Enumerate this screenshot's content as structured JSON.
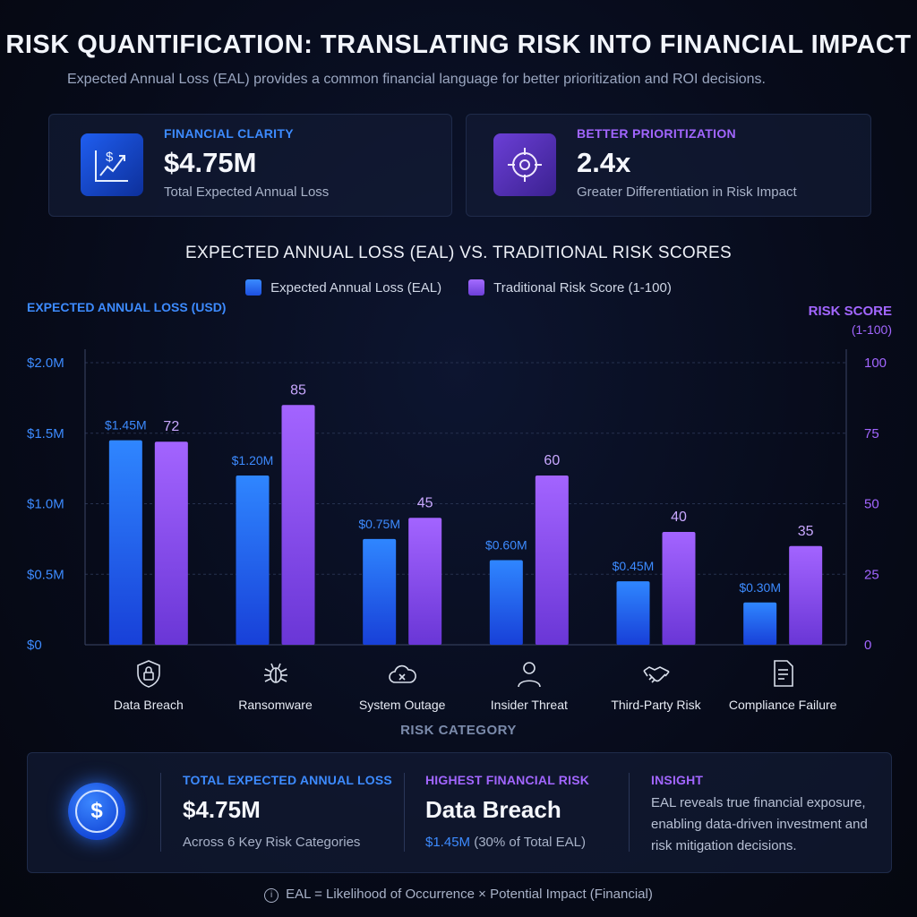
{
  "header": {
    "title": "RISK QUANTIFICATION: TRANSLATING RISK INTO FINANCIAL IMPACT",
    "subtitle": "Expected Annual Loss (EAL) provides a common financial language for better prioritization and ROI decisions."
  },
  "cards": [
    {
      "kicker": "FINANCIAL CLARITY",
      "value": "$4.75M",
      "desc": "Total Expected Annual Loss",
      "icon": "chart-dollar-icon",
      "accent": "#3d8bff"
    },
    {
      "kicker": "BETTER PRIORITIZATION",
      "value": "2.4x",
      "desc": "Greater Differentiation in Risk Impact",
      "icon": "target-icon",
      "accent": "#a266ff"
    }
  ],
  "chart_data": {
    "type": "bar",
    "title": "EXPECTED ANNUAL LOSS (EAL) VS. TRADITIONAL RISK SCORES",
    "xlabel": "RISK CATEGORY",
    "ylabel_left": "EXPECTED ANNUAL LOSS (USD)",
    "ylabel_right": "RISK SCORE",
    "ylabel_right_sub": "(1-100)",
    "categories": [
      "Data Breach",
      "Ransomware",
      "System Outage",
      "Insider Threat",
      "Third-Party Risk",
      "Compliance Failure"
    ],
    "category_icons": [
      "lock-shield-icon",
      "bug-icon",
      "cloud-x-icon",
      "person-icon",
      "handshake-icon",
      "document-icon"
    ],
    "series": [
      {
        "name": "Expected Annual Loss (EAL)",
        "axis": "left",
        "values": [
          1.45,
          1.2,
          0.75,
          0.6,
          0.45,
          0.3
        ],
        "labels": [
          "$1.45M",
          "$1.20M",
          "$0.75M",
          "$0.60M",
          "$0.45M",
          "$0.30M"
        ],
        "color": "#2f7dff"
      },
      {
        "name": "Traditional Risk Score (1-100)",
        "axis": "right",
        "values": [
          72,
          85,
          45,
          60,
          40,
          35
        ],
        "labels": [
          "72",
          "85",
          "45",
          "60",
          "40",
          "35"
        ],
        "color": "#9b5cf6"
      }
    ],
    "ylim_left": [
      0,
      2.0
    ],
    "ylim_right": [
      0,
      100
    ],
    "left_ticks": [
      "$0",
      "$0.5M",
      "$1.0M",
      "$1.5M",
      "$2.0M"
    ],
    "right_ticks": [
      "0",
      "25",
      "50",
      "75",
      "100"
    ],
    "grid": true,
    "legend": "top-center"
  },
  "summary": {
    "total": {
      "kicker": "TOTAL EXPECTED ANNUAL LOSS",
      "value": "$4.75M",
      "sub": "Across 6 Key Risk Categories"
    },
    "highest": {
      "kicker": "HIGHEST FINANCIAL RISK",
      "value": "Data Breach",
      "amount": "$1.45M",
      "note": "(30% of Total EAL)"
    },
    "insight": {
      "kicker": "INSIGHT",
      "text": "EAL reveals true financial exposure, enabling data-driven investment and risk mitigation decisions."
    },
    "coin_symbol": "$"
  },
  "footer": {
    "info_symbol": "i",
    "formula": "EAL = Likelihood of Occurrence × Potential Impact (Financial)"
  }
}
